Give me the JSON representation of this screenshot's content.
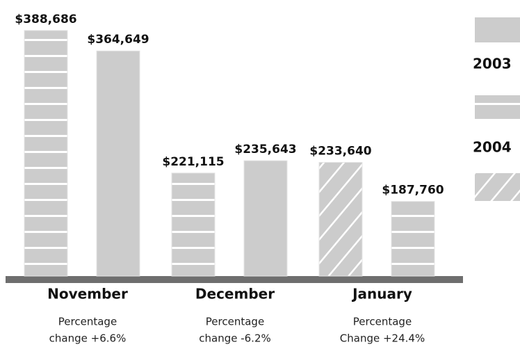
{
  "chart_data": {
    "type": "bar",
    "categories": [
      "November",
      "December",
      "January"
    ],
    "notes": [
      [
        "Percentage",
        "change +6.6%"
      ],
      [
        "Percentage",
        "change -6.2%"
      ],
      [
        "Percentage",
        "Change +24.4%"
      ]
    ],
    "series": [
      {
        "name": null,
        "color": "#cccccc",
        "pattern": "diagonal-hatch",
        "values": [
          null,
          null,
          233640
        ],
        "value_labels": [
          null,
          null,
          "$233,640"
        ]
      },
      {
        "name": "2004",
        "color": "#cccccc",
        "pattern": "horizontal-stripes",
        "values": [
          388686,
          221115,
          187760
        ],
        "value_labels": [
          "$388,686",
          "$221,115",
          "$187,760"
        ]
      },
      {
        "name": "2003",
        "color": "#cccccc",
        "pattern": "solid",
        "values": [
          364649,
          235643,
          null
        ],
        "value_labels": [
          "$364,649",
          "$235,643",
          null
        ]
      }
    ],
    "ylim": [
      100000,
      400000
    ]
  }
}
